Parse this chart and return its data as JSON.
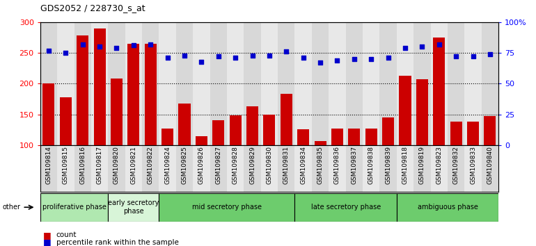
{
  "title": "GDS2052 / 228730_s_at",
  "samples": [
    "GSM109814",
    "GSM109815",
    "GSM109816",
    "GSM109817",
    "GSM109820",
    "GSM109821",
    "GSM109822",
    "GSM109824",
    "GSM109825",
    "GSM109826",
    "GSM109827",
    "GSM109828",
    "GSM109829",
    "GSM109830",
    "GSM109831",
    "GSM109834",
    "GSM109835",
    "GSM109836",
    "GSM109837",
    "GSM109838",
    "GSM109839",
    "GSM109818",
    "GSM109819",
    "GSM109823",
    "GSM109832",
    "GSM109833",
    "GSM109840"
  ],
  "counts": [
    200,
    178,
    278,
    290,
    208,
    265,
    265,
    127,
    168,
    115,
    141,
    148,
    163,
    150,
    184,
    126,
    107,
    127,
    127,
    127,
    145,
    213,
    207,
    275,
    138,
    138,
    147
  ],
  "percentiles": [
    77,
    75,
    82,
    80,
    79,
    81,
    82,
    71,
    73,
    68,
    72,
    71,
    73,
    73,
    76,
    71,
    67,
    69,
    70,
    70,
    71,
    79,
    80,
    82,
    72,
    72,
    74
  ],
  "phases": [
    {
      "label": "proliferative phase",
      "start": 0,
      "end": 4,
      "color": "#b0e8b0"
    },
    {
      "label": "early secretory\nphase",
      "start": 4,
      "end": 7,
      "color": "#d8f5d8"
    },
    {
      "label": "mid secretory phase",
      "start": 7,
      "end": 15,
      "color": "#6dcc6d"
    },
    {
      "label": "late secretory phase",
      "start": 15,
      "end": 21,
      "color": "#6dcc6d"
    },
    {
      "label": "ambiguous phase",
      "start": 21,
      "end": 27,
      "color": "#6dcc6d"
    }
  ],
  "bar_color": "#cc0000",
  "dot_color": "#0000cc",
  "ylim_left": [
    100,
    300
  ],
  "ylim_right": [
    0,
    100
  ],
  "yticks_left": [
    100,
    150,
    200,
    250,
    300
  ],
  "yticks_right": [
    0,
    25,
    50,
    75,
    100
  ],
  "ytick_labels_right": [
    "0",
    "25",
    "50",
    "75",
    "100%"
  ],
  "col_bg_odd": "#d8d8d8",
  "col_bg_even": "#e8e8e8",
  "fig_bg": "#ffffff"
}
